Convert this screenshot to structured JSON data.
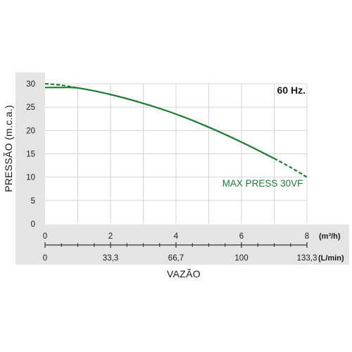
{
  "chart_data": {
    "type": "line",
    "frequency_label": "60 Hz.",
    "xlabel": "VAZÃO",
    "ylabel": "PRESSÃO (m.c.a.)",
    "x_unit_primary": "(m³/h)",
    "x_unit_secondary": "(L/min)",
    "xlim": [
      0,
      8
    ],
    "ylim": [
      0,
      30
    ],
    "x_ticks": [
      0,
      2,
      4,
      6,
      8
    ],
    "x_tick_labels": [
      "0",
      "2",
      "4",
      "6",
      "8"
    ],
    "x_secondary_ticks": [
      0,
      2,
      4,
      6,
      8
    ],
    "x_secondary_tick_labels": [
      "0",
      "33,3",
      "66,7",
      "100",
      "133,3"
    ],
    "y_ticks": [
      0,
      5,
      10,
      15,
      20,
      25,
      30
    ],
    "y_tick_labels": [
      "0",
      "5",
      "10",
      "15",
      "20",
      "25",
      "30"
    ],
    "grid": true,
    "colors": {
      "series": "#1f7a33",
      "axis_band": "#e4e4e4",
      "grid": "#d4d4d4"
    },
    "series": [
      {
        "name": "MAX PRESS 30VF",
        "solid": {
          "x": [
            0,
            0.5,
            1,
            2,
            3,
            4,
            5,
            6,
            7
          ],
          "y": [
            29.2,
            29.2,
            29.1,
            27.7,
            25.8,
            23.5,
            20.7,
            17.5,
            14.0
          ]
        },
        "dashed_start": {
          "x": [
            0,
            0.5,
            1
          ],
          "y": [
            30.0,
            29.7,
            29.1
          ]
        },
        "dashed_end": {
          "x": [
            7,
            7.5,
            8
          ],
          "y": [
            14.0,
            12.1,
            10.0
          ]
        }
      }
    ]
  }
}
